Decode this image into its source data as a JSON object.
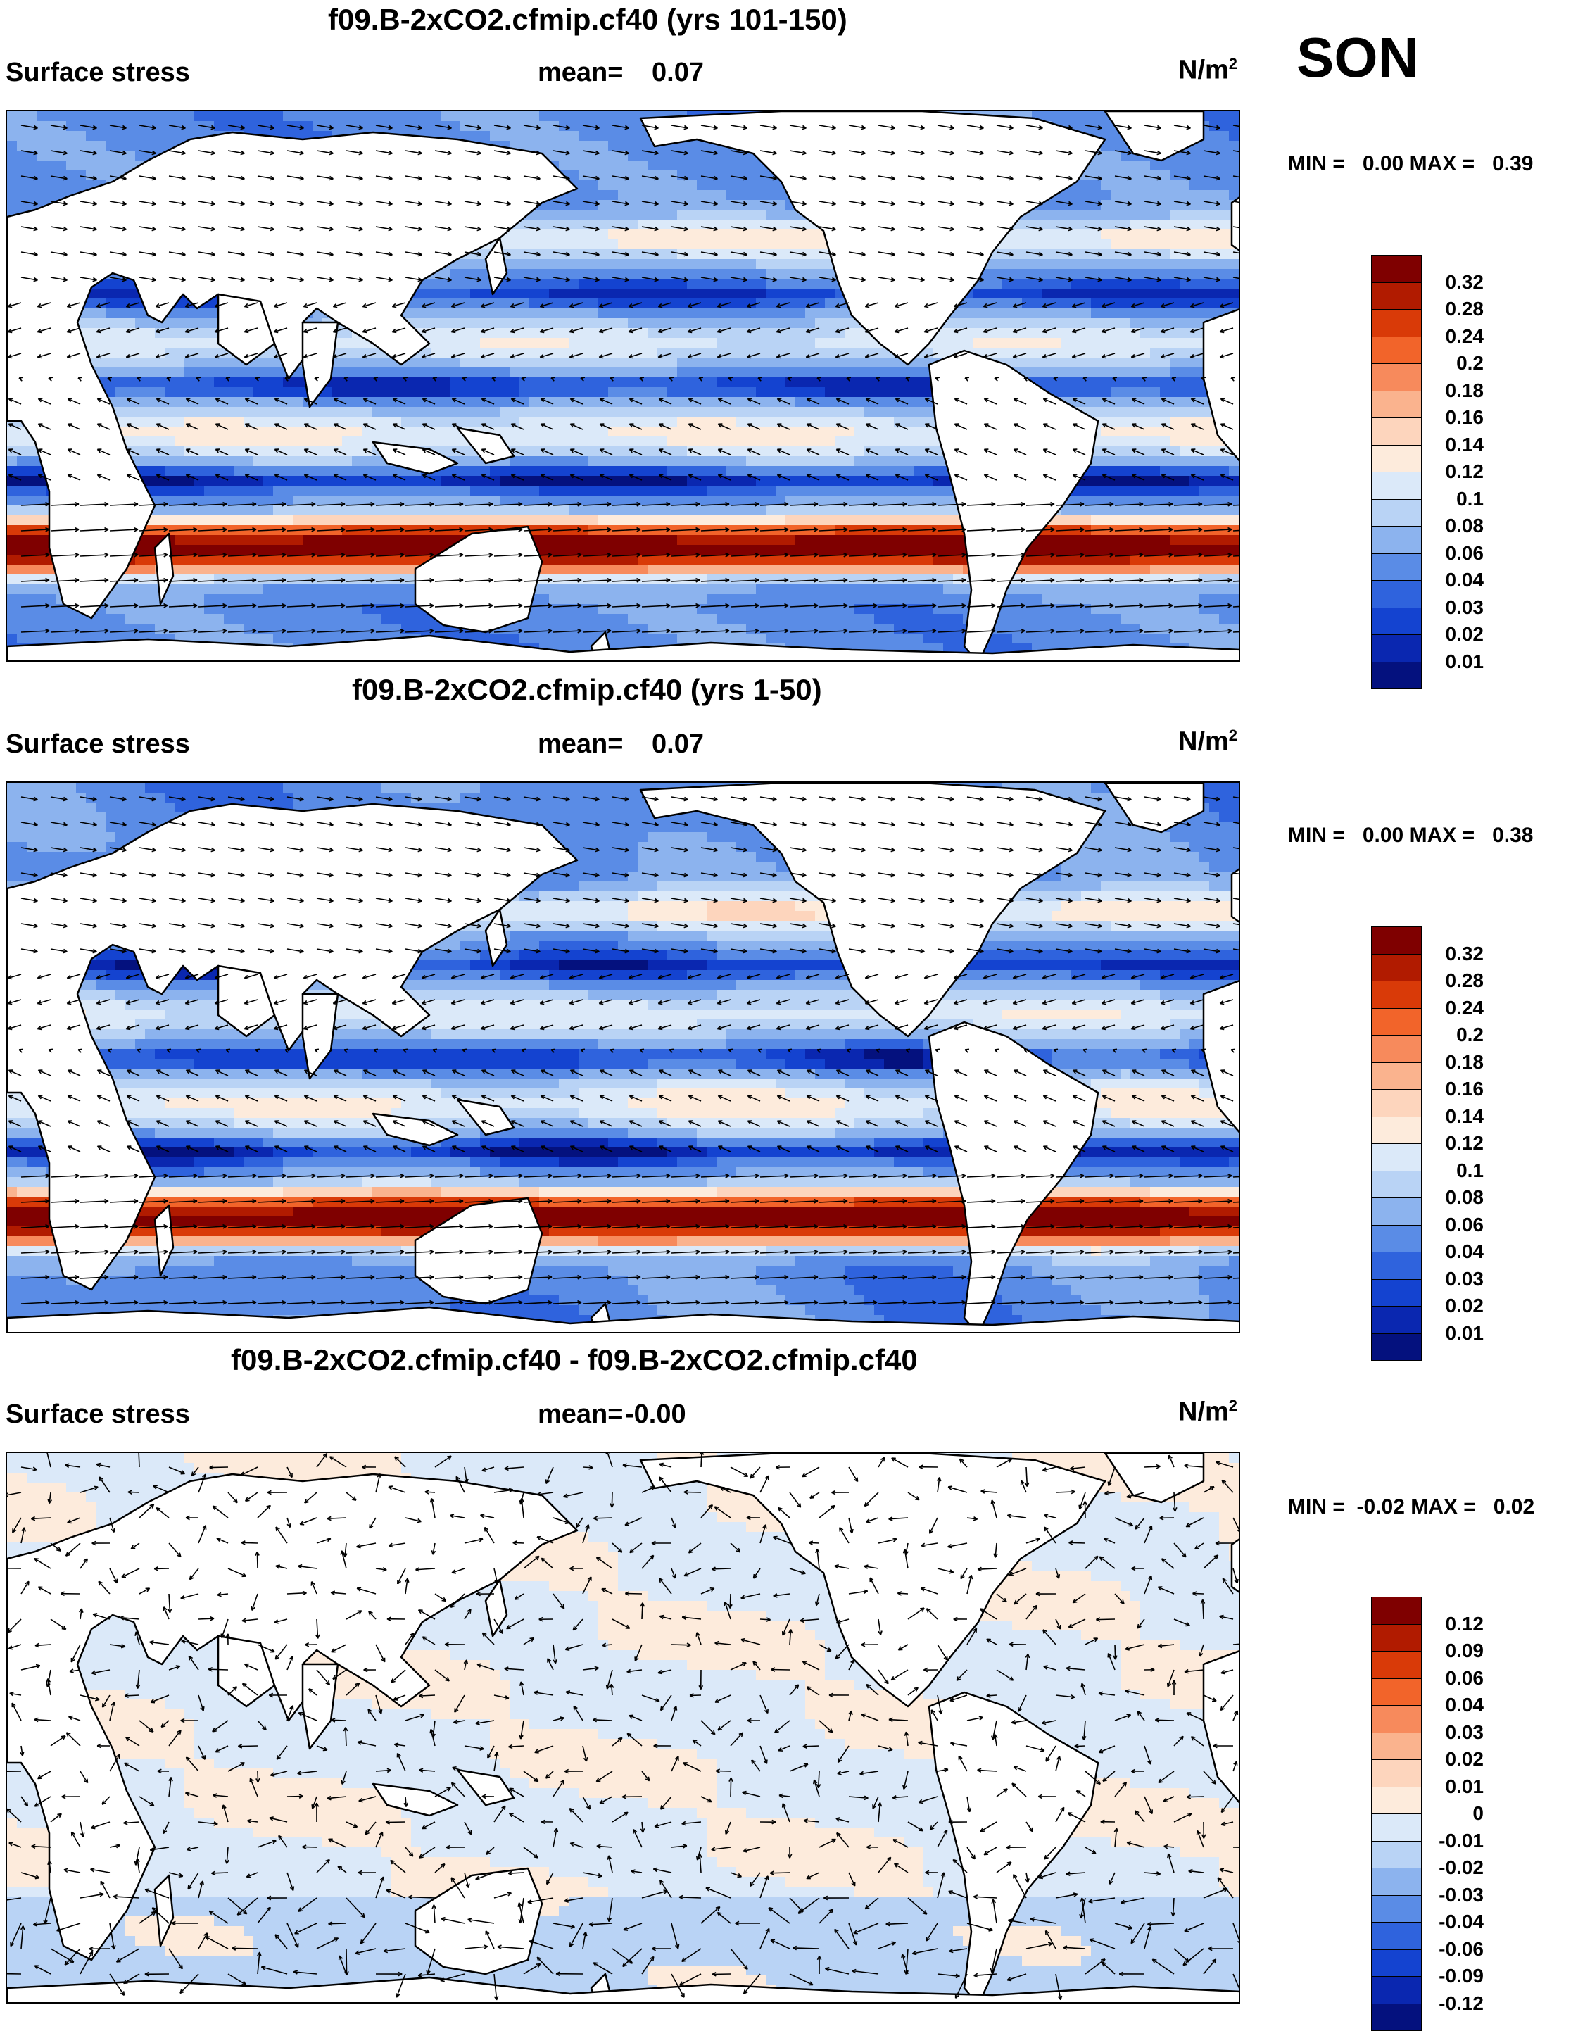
{
  "season": "SON",
  "panels": [
    {
      "title": "f09.B-2xCO2.cfmip.cf40 (yrs 101-150)",
      "variable": "Surface stress",
      "mean_label": "mean=",
      "mean_value": "0.07",
      "units": "N/m",
      "units_sup": "2",
      "minmax": "MIN =   0.00 MAX =   0.39",
      "colorbar": {
        "labels": [
          "0.32",
          "0.28",
          "0.24",
          "0.2",
          "0.18",
          "0.16",
          "0.14",
          "0.12",
          "0.1",
          "0.08",
          "0.06",
          "0.04",
          "0.03",
          "0.02",
          "0.01"
        ],
        "colors": [
          "#7f0000",
          "#b11b00",
          "#d93a08",
          "#f2642a",
          "#f78a5c",
          "#fab38e",
          "#fdd5bd",
          "#fdebdc",
          "#dbe9f9",
          "#b9d3f5",
          "#8cb3ee",
          "#5a8ce6",
          "#2f63dd",
          "#1443d0",
          "#0a27b0",
          "#04117e"
        ]
      }
    },
    {
      "title": "f09.B-2xCO2.cfmip.cf40 (yrs 1-50)",
      "variable": "Surface stress",
      "mean_label": "mean=",
      "mean_value": "0.07",
      "units": "N/m",
      "units_sup": "2",
      "minmax": "MIN =   0.00 MAX =   0.38",
      "colorbar": {
        "labels": [
          "0.32",
          "0.28",
          "0.24",
          "0.2",
          "0.18",
          "0.16",
          "0.14",
          "0.12",
          "0.1",
          "0.08",
          "0.06",
          "0.04",
          "0.03",
          "0.02",
          "0.01"
        ],
        "colors": [
          "#7f0000",
          "#b11b00",
          "#d93a08",
          "#f2642a",
          "#f78a5c",
          "#fab38e",
          "#fdd5bd",
          "#fdebdc",
          "#dbe9f9",
          "#b9d3f5",
          "#8cb3ee",
          "#5a8ce6",
          "#2f63dd",
          "#1443d0",
          "#0a27b0",
          "#04117e"
        ]
      }
    },
    {
      "title": "f09.B-2xCO2.cfmip.cf40 - f09.B-2xCO2.cfmip.cf40",
      "variable": "Surface stress",
      "mean_label": "mean=",
      "mean_value": "-0.00",
      "units": "N/m",
      "units_sup": "2",
      "minmax": "MIN =  -0.02 MAX =   0.02",
      "colorbar": {
        "labels": [
          "0.12",
          "0.09",
          "0.06",
          "0.04",
          "0.03",
          "0.02",
          "0.01",
          "0",
          "-0.01",
          "-0.02",
          "-0.03",
          "-0.04",
          "-0.06",
          "-0.09",
          "-0.12"
        ],
        "colors": [
          "#7f0000",
          "#b11b00",
          "#d93a08",
          "#f2642a",
          "#f78a5c",
          "#fab38e",
          "#fdd5bd",
          "#fdebdc",
          "#dbe9f9",
          "#b9d3f5",
          "#8cb3ee",
          "#5a8ce6",
          "#2f63dd",
          "#1443d0",
          "#0a27b0",
          "#04117e"
        ]
      }
    }
  ]
}
